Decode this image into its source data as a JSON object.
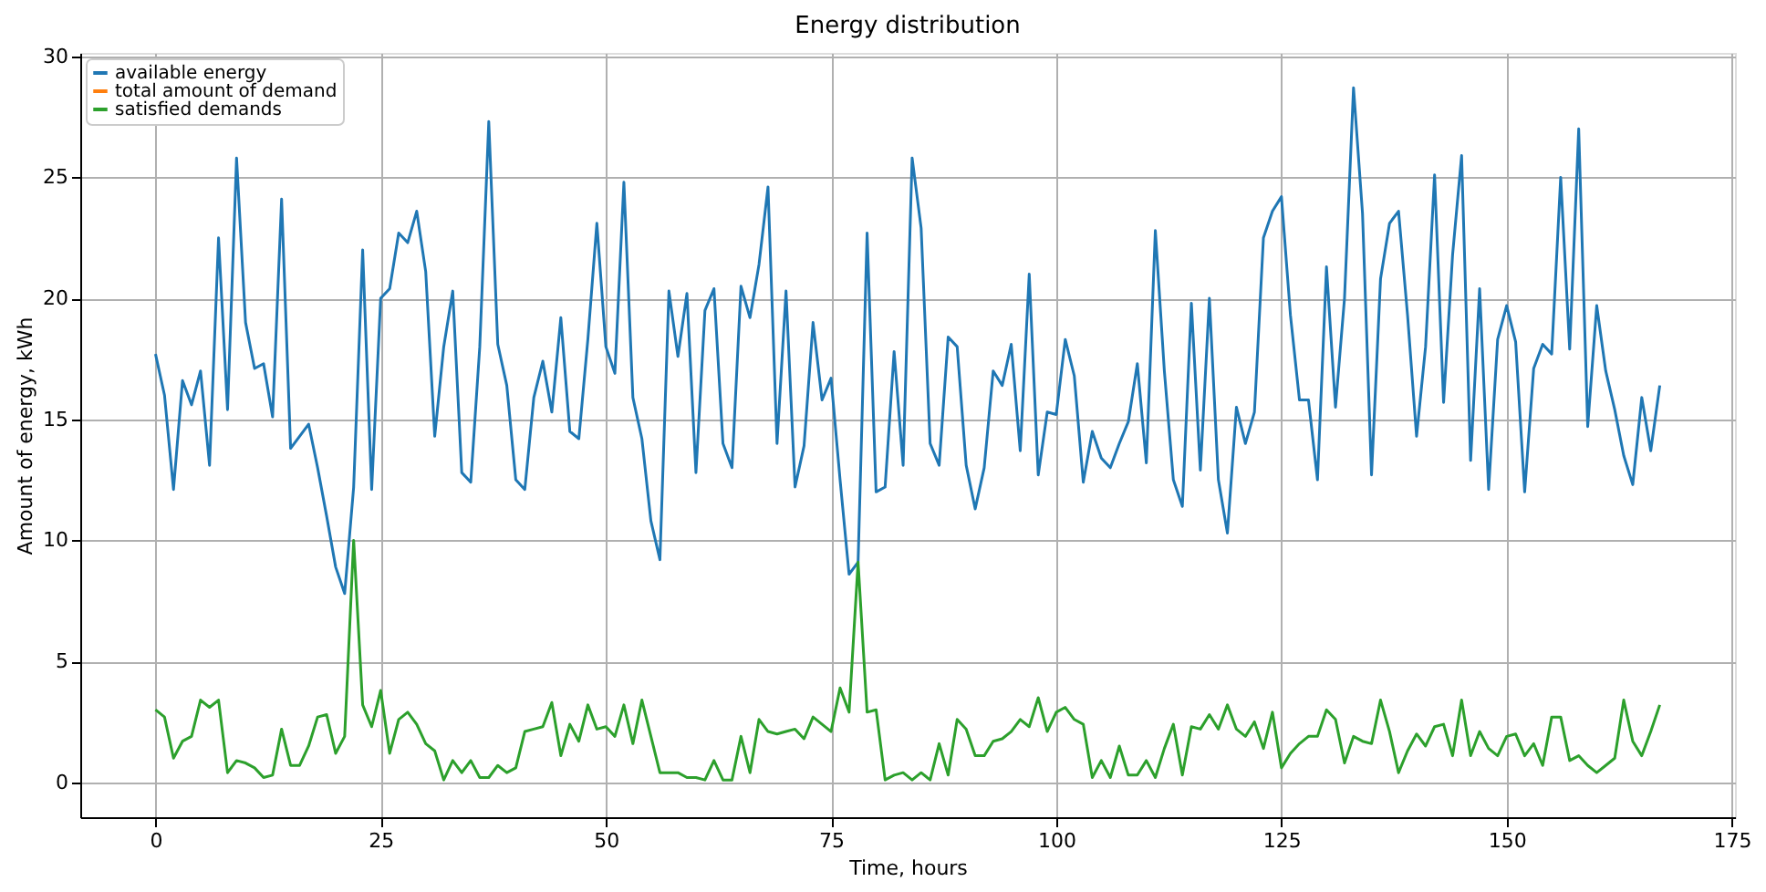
{
  "chart_data": {
    "type": "line",
    "title": "Energy distribution",
    "xlabel": "Time, hours",
    "ylabel": "Amount of energy, kWh",
    "x": [
      0,
      1,
      2,
      3,
      4,
      5,
      6,
      7,
      8,
      9,
      10,
      11,
      12,
      13,
      14,
      15,
      16,
      17,
      18,
      19,
      20,
      21,
      22,
      23,
      24,
      25,
      26,
      27,
      28,
      29,
      30,
      31,
      32,
      33,
      34,
      35,
      36,
      37,
      38,
      39,
      40,
      41,
      42,
      43,
      44,
      45,
      46,
      47,
      48,
      49,
      50,
      51,
      52,
      53,
      54,
      55,
      56,
      57,
      58,
      59,
      60,
      61,
      62,
      63,
      64,
      65,
      66,
      67,
      68,
      69,
      70,
      71,
      72,
      73,
      74,
      75,
      76,
      77,
      78,
      79,
      80,
      81,
      82,
      83,
      84,
      85,
      86,
      87,
      88,
      89,
      90,
      91,
      92,
      93,
      94,
      95,
      96,
      97,
      98,
      99,
      100,
      101,
      102,
      103,
      104,
      105,
      106,
      107,
      108,
      109,
      110,
      111,
      112,
      113,
      114,
      115,
      116,
      117,
      118,
      119,
      120,
      121,
      122,
      123,
      124,
      125,
      126,
      127,
      128,
      129,
      130,
      131,
      132,
      133,
      134,
      135,
      136,
      137,
      138,
      139,
      140,
      141,
      142,
      143,
      144,
      145,
      146,
      147,
      148,
      149,
      150,
      151,
      152,
      153,
      154,
      155,
      156,
      157,
      158,
      159,
      160,
      161,
      162,
      163,
      164,
      165,
      166,
      167
    ],
    "series": [
      {
        "name": "available energy",
        "color": "#1f77b4",
        "values": [
          17.7,
          16.0,
          12.1,
          16.6,
          15.6,
          17.0,
          13.1,
          22.5,
          15.4,
          25.8,
          19.0,
          17.1,
          17.3,
          15.1,
          24.1,
          13.8,
          14.3,
          14.8,
          13.0,
          11.0,
          8.9,
          7.8,
          12.2,
          22.0,
          12.1,
          20.0,
          20.4,
          22.7,
          22.3,
          23.6,
          21.1,
          14.3,
          18.0,
          20.3,
          12.8,
          12.4,
          18.0,
          27.3,
          18.1,
          16.4,
          12.5,
          12.1,
          15.9,
          17.4,
          15.3,
          19.2,
          14.5,
          14.2,
          18.3,
          23.1,
          18.0,
          16.9,
          24.8,
          15.9,
          14.2,
          10.8,
          9.2,
          20.3,
          17.6,
          20.2,
          12.8,
          19.5,
          20.4,
          14.0,
          13.0,
          20.5,
          19.2,
          21.4,
          24.6,
          14.0,
          20.3,
          12.2,
          13.9,
          19.0,
          15.8,
          16.7,
          12.5,
          8.6,
          9.1,
          22.7,
          12.0,
          12.2,
          17.8,
          13.1,
          25.8,
          22.9,
          14.0,
          13.1,
          18.4,
          18.0,
          13.1,
          11.3,
          13.0,
          17.0,
          16.4,
          18.1,
          13.7,
          21.0,
          12.7,
          15.3,
          15.2,
          18.3,
          16.8,
          12.4,
          14.5,
          13.4,
          13.0,
          14.0,
          14.9,
          17.3,
          13.2,
          22.8,
          17.0,
          12.5,
          11.4,
          19.8,
          12.9,
          20.0,
          12.5,
          10.3,
          15.5,
          14.0,
          15.3,
          22.5,
          23.6,
          24.2,
          19.3,
          15.8,
          15.8,
          12.5,
          21.3,
          15.5,
          20.0,
          28.7,
          23.5,
          12.7,
          20.8,
          23.1,
          23.6,
          19.3,
          14.3,
          18.0,
          25.1,
          15.7,
          21.8,
          25.9,
          13.3,
          20.4,
          12.1,
          18.3,
          19.7,
          18.2,
          12.0,
          17.1,
          18.1,
          17.7,
          25.0,
          17.9,
          27.0,
          14.7,
          19.7,
          17.0,
          15.4,
          13.5,
          12.3,
          15.9,
          13.7,
          16.4
        ]
      },
      {
        "name": "total amount of demand",
        "color": "#ff7f0e",
        "values": [
          null,
          null,
          null,
          null,
          null,
          null,
          null,
          null,
          null,
          null,
          null,
          null,
          null,
          null,
          null,
          null,
          null,
          null,
          null,
          null,
          null,
          null,
          null,
          null,
          null,
          null,
          null,
          null,
          null,
          null,
          null,
          null,
          null,
          null,
          null,
          null,
          null,
          null,
          null,
          null,
          null,
          null,
          null,
          null,
          null,
          null,
          null,
          null,
          null,
          null,
          null,
          null,
          null,
          null,
          null,
          null,
          null,
          null,
          null,
          null,
          null,
          null,
          null,
          null,
          null,
          null,
          null,
          null,
          null,
          null,
          null,
          null,
          null,
          null,
          null,
          null,
          null,
          null,
          null,
          null,
          null,
          null,
          null,
          null,
          null,
          null,
          null,
          null,
          null,
          null,
          null,
          null,
          null,
          null,
          null,
          null,
          null,
          null,
          null,
          null,
          null,
          null,
          null,
          null,
          null,
          null,
          null,
          null,
          null,
          null,
          null,
          null,
          null,
          null,
          null,
          null,
          null,
          null,
          null,
          null,
          null,
          null,
          null,
          null,
          null,
          null,
          null,
          null,
          null,
          null,
          null,
          null,
          null,
          null,
          null,
          null,
          null,
          null,
          null,
          null,
          null,
          null,
          null,
          null,
          null,
          null,
          null,
          null,
          null,
          null,
          null,
          null,
          null,
          null,
          null,
          null,
          null,
          null,
          null,
          null,
          null,
          null,
          null,
          null,
          null,
          null,
          null,
          null
        ]
      },
      {
        "name": "satisfied demands",
        "color": "#2ca02c",
        "values": [
          3.0,
          2.7,
          1.0,
          1.7,
          1.9,
          3.4,
          3.1,
          3.4,
          0.4,
          0.9,
          0.8,
          0.6,
          0.2,
          0.3,
          2.2,
          0.7,
          0.7,
          1.5,
          2.7,
          2.8,
          1.2,
          1.9,
          10.0,
          3.2,
          2.3,
          3.8,
          1.2,
          2.6,
          2.9,
          2.4,
          1.6,
          1.3,
          0.1,
          0.9,
          0.4,
          0.9,
          0.2,
          0.2,
          0.7,
          0.4,
          0.6,
          2.1,
          2.2,
          2.3,
          3.3,
          1.1,
          2.4,
          1.7,
          3.2,
          2.2,
          2.3,
          1.9,
          3.2,
          1.6,
          3.4,
          1.9,
          0.4,
          0.4,
          0.4,
          0.2,
          0.2,
          0.1,
          0.9,
          0.1,
          0.1,
          1.9,
          0.4,
          2.6,
          2.1,
          2.0,
          2.1,
          2.2,
          1.8,
          2.7,
          2.4,
          2.1,
          3.9,
          2.9,
          9.1,
          2.9,
          3.0,
          0.1,
          0.3,
          0.4,
          0.1,
          0.4,
          0.1,
          1.6,
          0.3,
          2.6,
          2.2,
          1.1,
          1.1,
          1.7,
          1.8,
          2.1,
          2.6,
          2.3,
          3.5,
          2.1,
          2.9,
          3.1,
          2.6,
          2.4,
          0.2,
          0.9,
          0.2,
          1.5,
          0.3,
          0.3,
          0.9,
          0.2,
          1.4,
          2.4,
          0.3,
          2.3,
          2.2,
          2.8,
          2.2,
          3.2,
          2.2,
          1.9,
          2.5,
          1.4,
          2.9,
          0.6,
          1.2,
          1.6,
          1.9,
          1.9,
          3.0,
          2.6,
          0.8,
          1.9,
          1.7,
          1.6,
          3.4,
          2.1,
          0.4,
          1.3,
          2.0,
          1.5,
          2.3,
          2.4,
          1.1,
          3.4,
          1.1,
          2.1,
          1.4,
          1.1,
          1.9,
          2.0,
          1.1,
          1.6,
          0.7,
          2.7,
          2.7,
          0.9,
          1.1,
          0.7,
          0.4,
          0.7,
          1.0,
          3.4,
          1.7,
          1.1,
          2.1,
          3.2
        ]
      }
    ],
    "xlim": [
      -8.35,
      175.35
    ],
    "xticks": [
      0,
      25,
      50,
      75,
      100,
      125,
      150,
      175
    ],
    "ylim": [
      -1.44,
      30.14
    ],
    "yticks": [
      0,
      5,
      10,
      15,
      20,
      25,
      30
    ],
    "grid": true,
    "legend": "top left",
    "marker": "none",
    "line_style": "solid"
  }
}
